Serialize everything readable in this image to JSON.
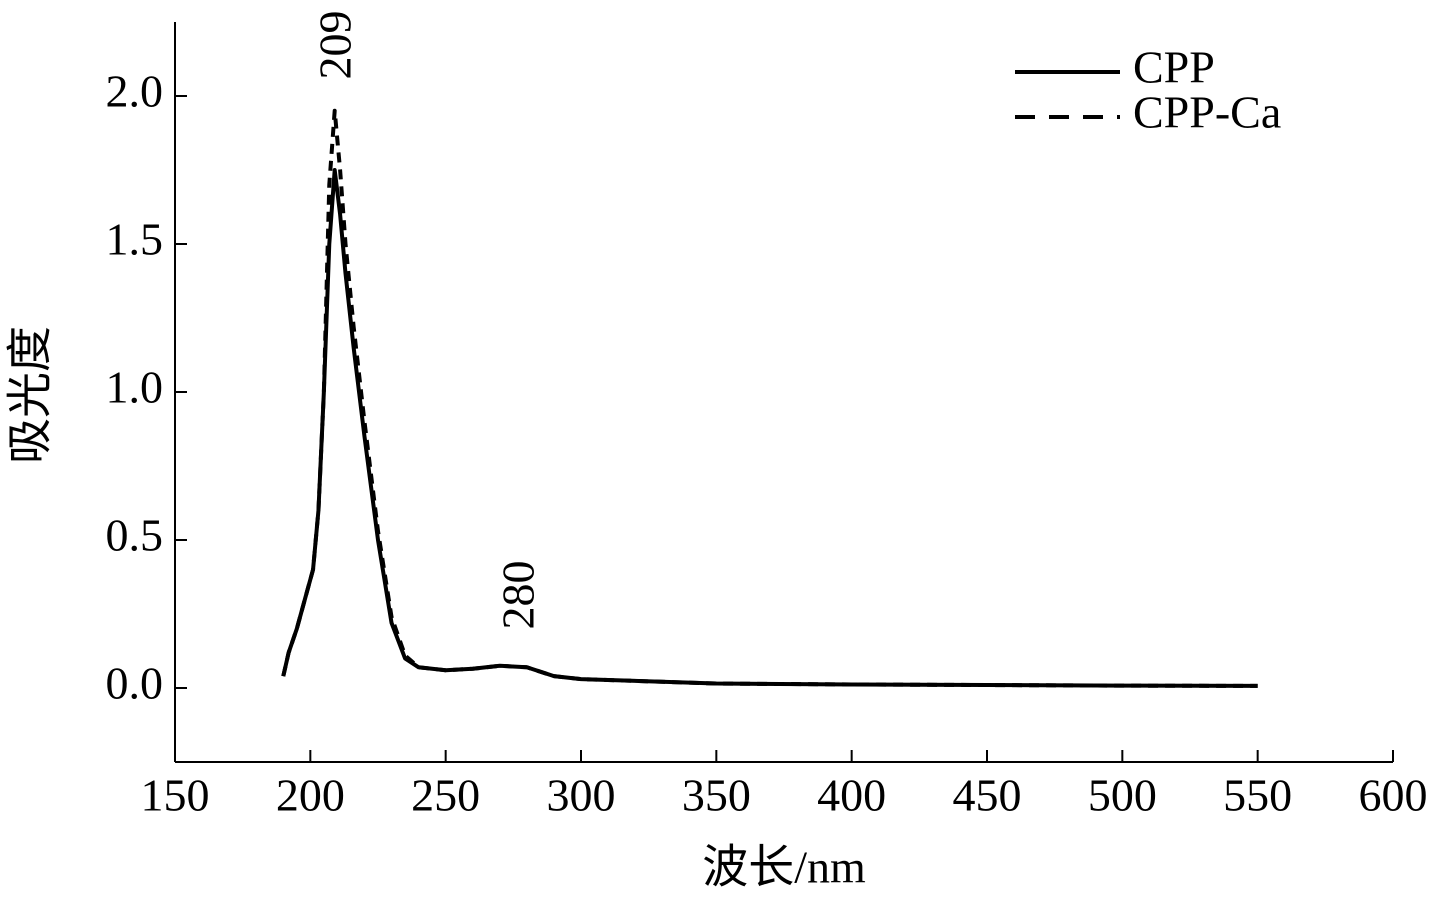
{
  "chart_data": {
    "type": "line",
    "xlabel": "波长/nm",
    "ylabel": "吸光度",
    "x": [
      190,
      192,
      195,
      198,
      201,
      203,
      205,
      207,
      209,
      211,
      213,
      216,
      220,
      225,
      230,
      235,
      240,
      250,
      260,
      270,
      280,
      290,
      300,
      350,
      400,
      450,
      500,
      550
    ],
    "series": [
      {
        "name": "CPP",
        "color": "#000000",
        "dash": false,
        "values": [
          0.04,
          0.12,
          0.2,
          0.3,
          0.4,
          0.6,
          1.0,
          1.5,
          1.75,
          1.6,
          1.4,
          1.15,
          0.85,
          0.5,
          0.22,
          0.1,
          0.07,
          0.06,
          0.065,
          0.075,
          0.07,
          0.04,
          0.03,
          0.015,
          0.012,
          0.01,
          0.008,
          0.007
        ]
      },
      {
        "name": "CPP-Ca",
        "color": "#000000",
        "dash": true,
        "values": [
          0.04,
          0.12,
          0.2,
          0.3,
          0.4,
          0.6,
          1.0,
          1.7,
          1.95,
          1.75,
          1.5,
          1.22,
          0.9,
          0.53,
          0.24,
          0.11,
          0.07,
          0.06,
          0.065,
          0.075,
          0.07,
          0.04,
          0.03,
          0.015,
          0.012,
          0.01,
          0.008,
          0.007
        ]
      }
    ],
    "annotations": [
      "209",
      "280"
    ],
    "xlim": [
      150,
      600
    ],
    "xticks": [
      150,
      200,
      250,
      300,
      350,
      400,
      450,
      500,
      550,
      600
    ],
    "ylim": [
      -0.25,
      2.25
    ],
    "yticks": [
      {
        "value": 0,
        "label": "0.0"
      },
      0.5,
      {
        "value": 1,
        "label": "1.0"
      },
      1.5,
      {
        "value": 2,
        "label": "2.0"
      }
    ],
    "legend": "upper-right"
  }
}
